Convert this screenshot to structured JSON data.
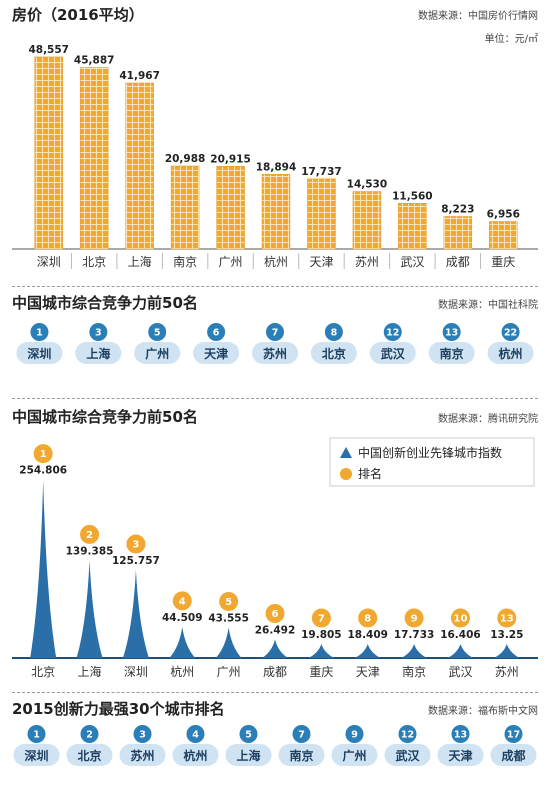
{
  "charts": [
    {
      "title": "房价（2016平均）",
      "source": "数据来源：中国房价行情网",
      "unit": "单位：元/㎡",
      "accent": "#f0a830"
    },
    {
      "title": "中国城市综合竞争力前50名",
      "source": "数据来源：中国社科院",
      "accent": "#2a7fb8"
    },
    {
      "title": "中国城市综合竞争力前50名",
      "source": "数据来源：腾讯研究院",
      "legend": [
        "中国创新创业先锋城市指数",
        "排名"
      ],
      "accent": "#2a6fa8",
      "rank_color": "#f0a830"
    },
    {
      "title": "2015创新力最强30个城市排名",
      "source": "数据来源：福布斯中文网",
      "accent": "#2a7fb8"
    }
  ],
  "chart_data": [
    {
      "type": "bar",
      "title": "房价（2016平均）",
      "ylabel": "单位：元/㎡",
      "categories": [
        "深圳",
        "北京",
        "上海",
        "南京",
        "广州",
        "杭州",
        "天津",
        "苏州",
        "武汉",
        "成都",
        "重庆"
      ],
      "values": [
        48557,
        45887,
        41967,
        20988,
        20915,
        18894,
        17737,
        14530,
        11560,
        8223,
        6956
      ],
      "value_labels": [
        "48,557",
        "45,887",
        "41,967",
        "20,988",
        "20,915",
        "18,894",
        "17,737",
        "14,530",
        "11,560",
        "8,223",
        "6,956"
      ],
      "ylim": [
        0,
        50000
      ]
    },
    {
      "type": "table",
      "title": "中国城市综合竞争力前50名",
      "categories": [
        "深圳",
        "上海",
        "广州",
        "天津",
        "苏州",
        "北京",
        "武汉",
        "南京",
        "杭州"
      ],
      "ranks": [
        "1",
        "3",
        "5",
        "6",
        "7",
        "8",
        "12",
        "13",
        "22"
      ]
    },
    {
      "type": "bar",
      "title": "中国城市综合竞争力前50名",
      "categories": [
        "北京",
        "上海",
        "深圳",
        "杭州",
        "广州",
        "成都",
        "重庆",
        "天津",
        "南京",
        "武汉",
        "苏州"
      ],
      "series": [
        {
          "name": "中国创新创业先锋城市指数",
          "values": [
            254.806,
            139.385,
            125.757,
            44.509,
            43.555,
            26.492,
            19.805,
            18.409,
            17.733,
            16.406,
            13.25
          ],
          "value_labels": [
            "254.806",
            "139.385",
            "125.757",
            "44.509",
            "43.555",
            "26.492",
            "19.805",
            "18.409",
            "17.733",
            "16.406",
            "13.25"
          ]
        },
        {
          "name": "排名",
          "values": [
            "1",
            "2",
            "3",
            "4",
            "5",
            "6",
            "7",
            "8",
            "9",
            "10",
            "13"
          ]
        }
      ],
      "legend": "top-right",
      "ylim": [
        0,
        260
      ]
    },
    {
      "type": "table",
      "title": "2015创新力最强30个城市排名",
      "categories": [
        "深圳",
        "北京",
        "苏州",
        "杭州",
        "上海",
        "南京",
        "广州",
        "武汉",
        "天津",
        "成都"
      ],
      "ranks": [
        "1",
        "2",
        "3",
        "4",
        "5",
        "7",
        "9",
        "12",
        "13",
        "17"
      ]
    }
  ]
}
